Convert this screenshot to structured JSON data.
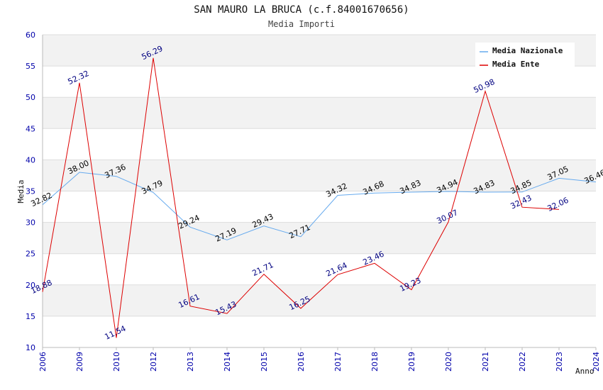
{
  "chart_data": {
    "type": "line",
    "title": "SAN MAURO LA BRUCA (c.f.84001670656)",
    "subtitle": "Media Importi",
    "xlabel": "Anno",
    "ylabel": "Media",
    "ylim": [
      10,
      60
    ],
    "yticks": [
      "10",
      "15",
      "20",
      "25",
      "30",
      "35",
      "40",
      "45",
      "50",
      "55",
      "60"
    ],
    "categories": [
      "2006",
      "2009",
      "2010",
      "2012",
      "2013",
      "2014",
      "2015",
      "2016",
      "2017",
      "2018",
      "2019",
      "2020",
      "2021",
      "2022",
      "2023",
      "2024"
    ],
    "series": [
      {
        "name": "Media Nazionale",
        "color": "#66aaee",
        "label_color": "#000000",
        "values": [
          32.82,
          38.0,
          37.36,
          34.79,
          29.24,
          27.19,
          29.43,
          27.71,
          34.32,
          34.68,
          34.83,
          34.94,
          34.83,
          34.85,
          37.05,
          36.46
        ],
        "labels": [
          "32.82",
          "38.00",
          "37.36",
          "34.79",
          "29.24",
          "27.19",
          "29.43",
          "27.71",
          "34.32",
          "34.68",
          "34.83",
          "34.94",
          "34.83",
          "34.85",
          "37.05",
          "36.46"
        ]
      },
      {
        "name": "Media Ente",
        "color": "#dd0000",
        "label_color": "#000080",
        "values": [
          18.88,
          52.32,
          11.54,
          56.29,
          16.61,
          15.43,
          21.71,
          16.25,
          21.64,
          23.46,
          19.23,
          30.07,
          50.98,
          32.43,
          32.06,
          null
        ],
        "labels": [
          "18.88",
          "52.32",
          "11.54",
          "56.29",
          "16.61",
          "15.43",
          "21.71",
          "16.25",
          "21.64",
          "23.46",
          "19.23",
          "30.07",
          "50.98",
          "32.43",
          "32.06",
          ""
        ]
      }
    ],
    "legend": "top-right"
  }
}
